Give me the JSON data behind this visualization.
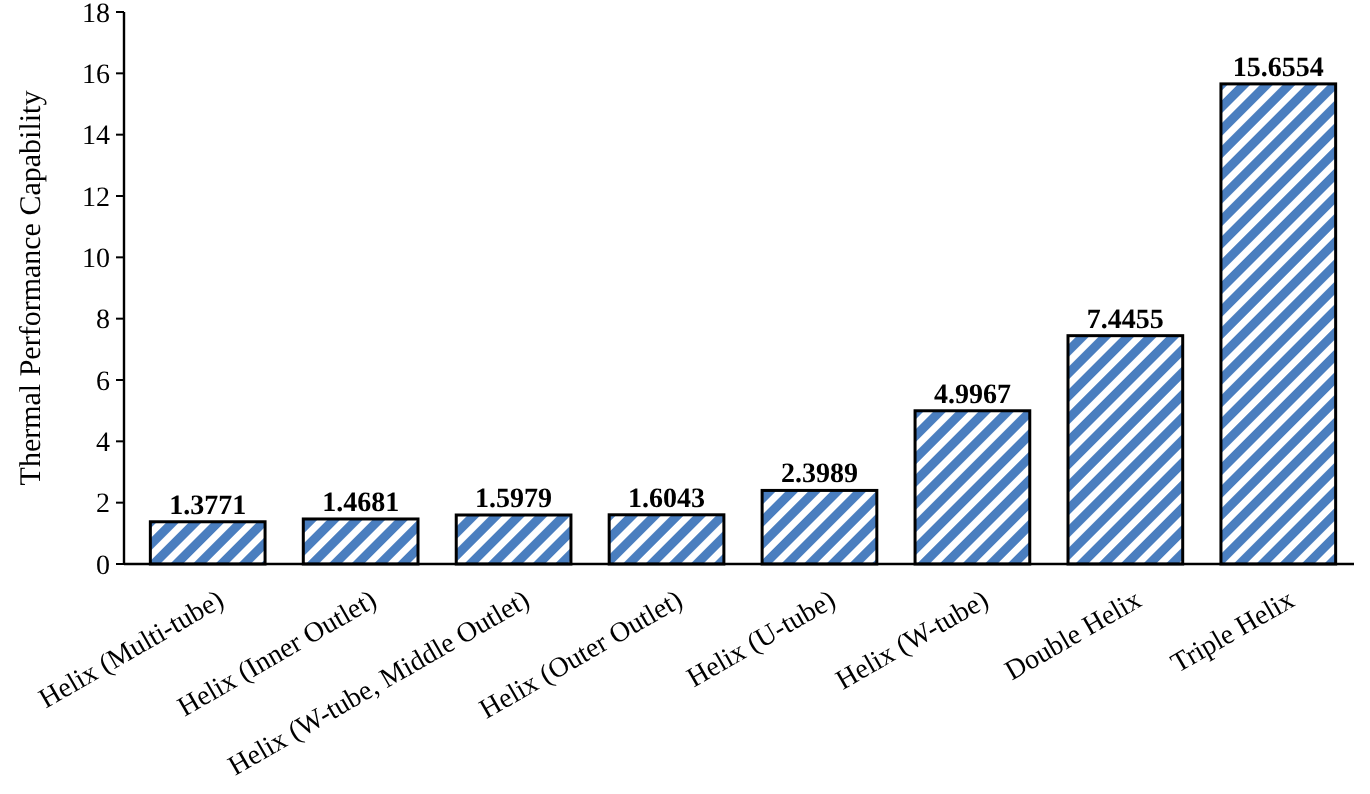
{
  "chart_data": {
    "type": "bar",
    "ylabel": "Thermal Performance Capability",
    "categories": [
      "Helix (Multi-tube)",
      "Helix (Inner Outlet)",
      "Helix (W-tube, Middle Outlet)",
      "Helix (Outer Outlet)",
      "Helix (U-tube)",
      "Helix (W-tube)",
      "Double Helix",
      "Triple Helix"
    ],
    "values": [
      1.3771,
      1.4681,
      1.5979,
      1.6043,
      2.3989,
      4.9967,
      7.4455,
      15.6554
    ],
    "color": "#4a7ebf",
    "ylim": [
      0,
      18
    ],
    "yticks": [
      0,
      2,
      4,
      6,
      8,
      10,
      12,
      14,
      16,
      18
    ],
    "grid": false,
    "data_labels": true
  }
}
